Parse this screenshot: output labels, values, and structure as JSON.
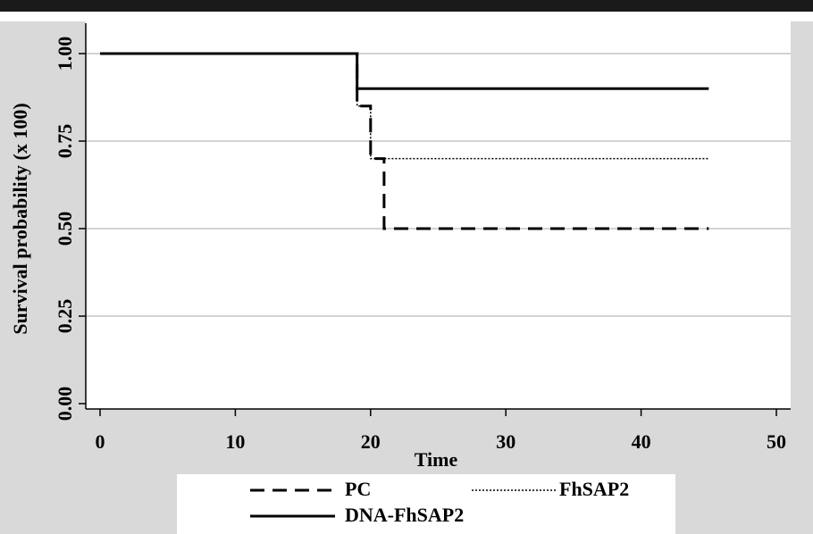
{
  "chart_data": {
    "type": "line",
    "subtype": "step",
    "title": "",
    "xlabel": "Time",
    "ylabel": "Survival probability (x 100)",
    "xlim": [
      0,
      50
    ],
    "ylim": [
      0,
      1
    ],
    "x_ticks": [
      0,
      10,
      20,
      30,
      40,
      50
    ],
    "x_tick_labels": [
      "0",
      "10",
      "20",
      "30",
      "40",
      "50"
    ],
    "y_ticks": [
      0,
      0.25,
      0.5,
      0.75,
      1.0
    ],
    "y_tick_labels": [
      "0.00",
      "0.25",
      "0.50",
      "0.75",
      "1.00"
    ],
    "grid": "horizontal",
    "legend_position": "bottom",
    "series": [
      {
        "name": "PC",
        "style": "dashed",
        "x": [
          0,
          19,
          19,
          20,
          20,
          21,
          21,
          45
        ],
        "y": [
          1.0,
          1.0,
          0.85,
          0.85,
          0.7,
          0.7,
          0.5,
          0.5
        ]
      },
      {
        "name": "FhSAP2",
        "style": "dotted",
        "x": [
          0,
          19,
          19,
          20,
          20,
          45
        ],
        "y": [
          1.0,
          1.0,
          0.85,
          0.85,
          0.7,
          0.7
        ]
      },
      {
        "name": "DNA-FhSAP2",
        "style": "solid",
        "x": [
          0,
          19,
          19,
          45
        ],
        "y": [
          1.0,
          1.0,
          0.9,
          0.9
        ]
      }
    ],
    "colors": {
      "line": "#000000",
      "grid": "#d3d3d3",
      "background": "#d9d9d9",
      "plot_area": "#ffffff"
    }
  }
}
